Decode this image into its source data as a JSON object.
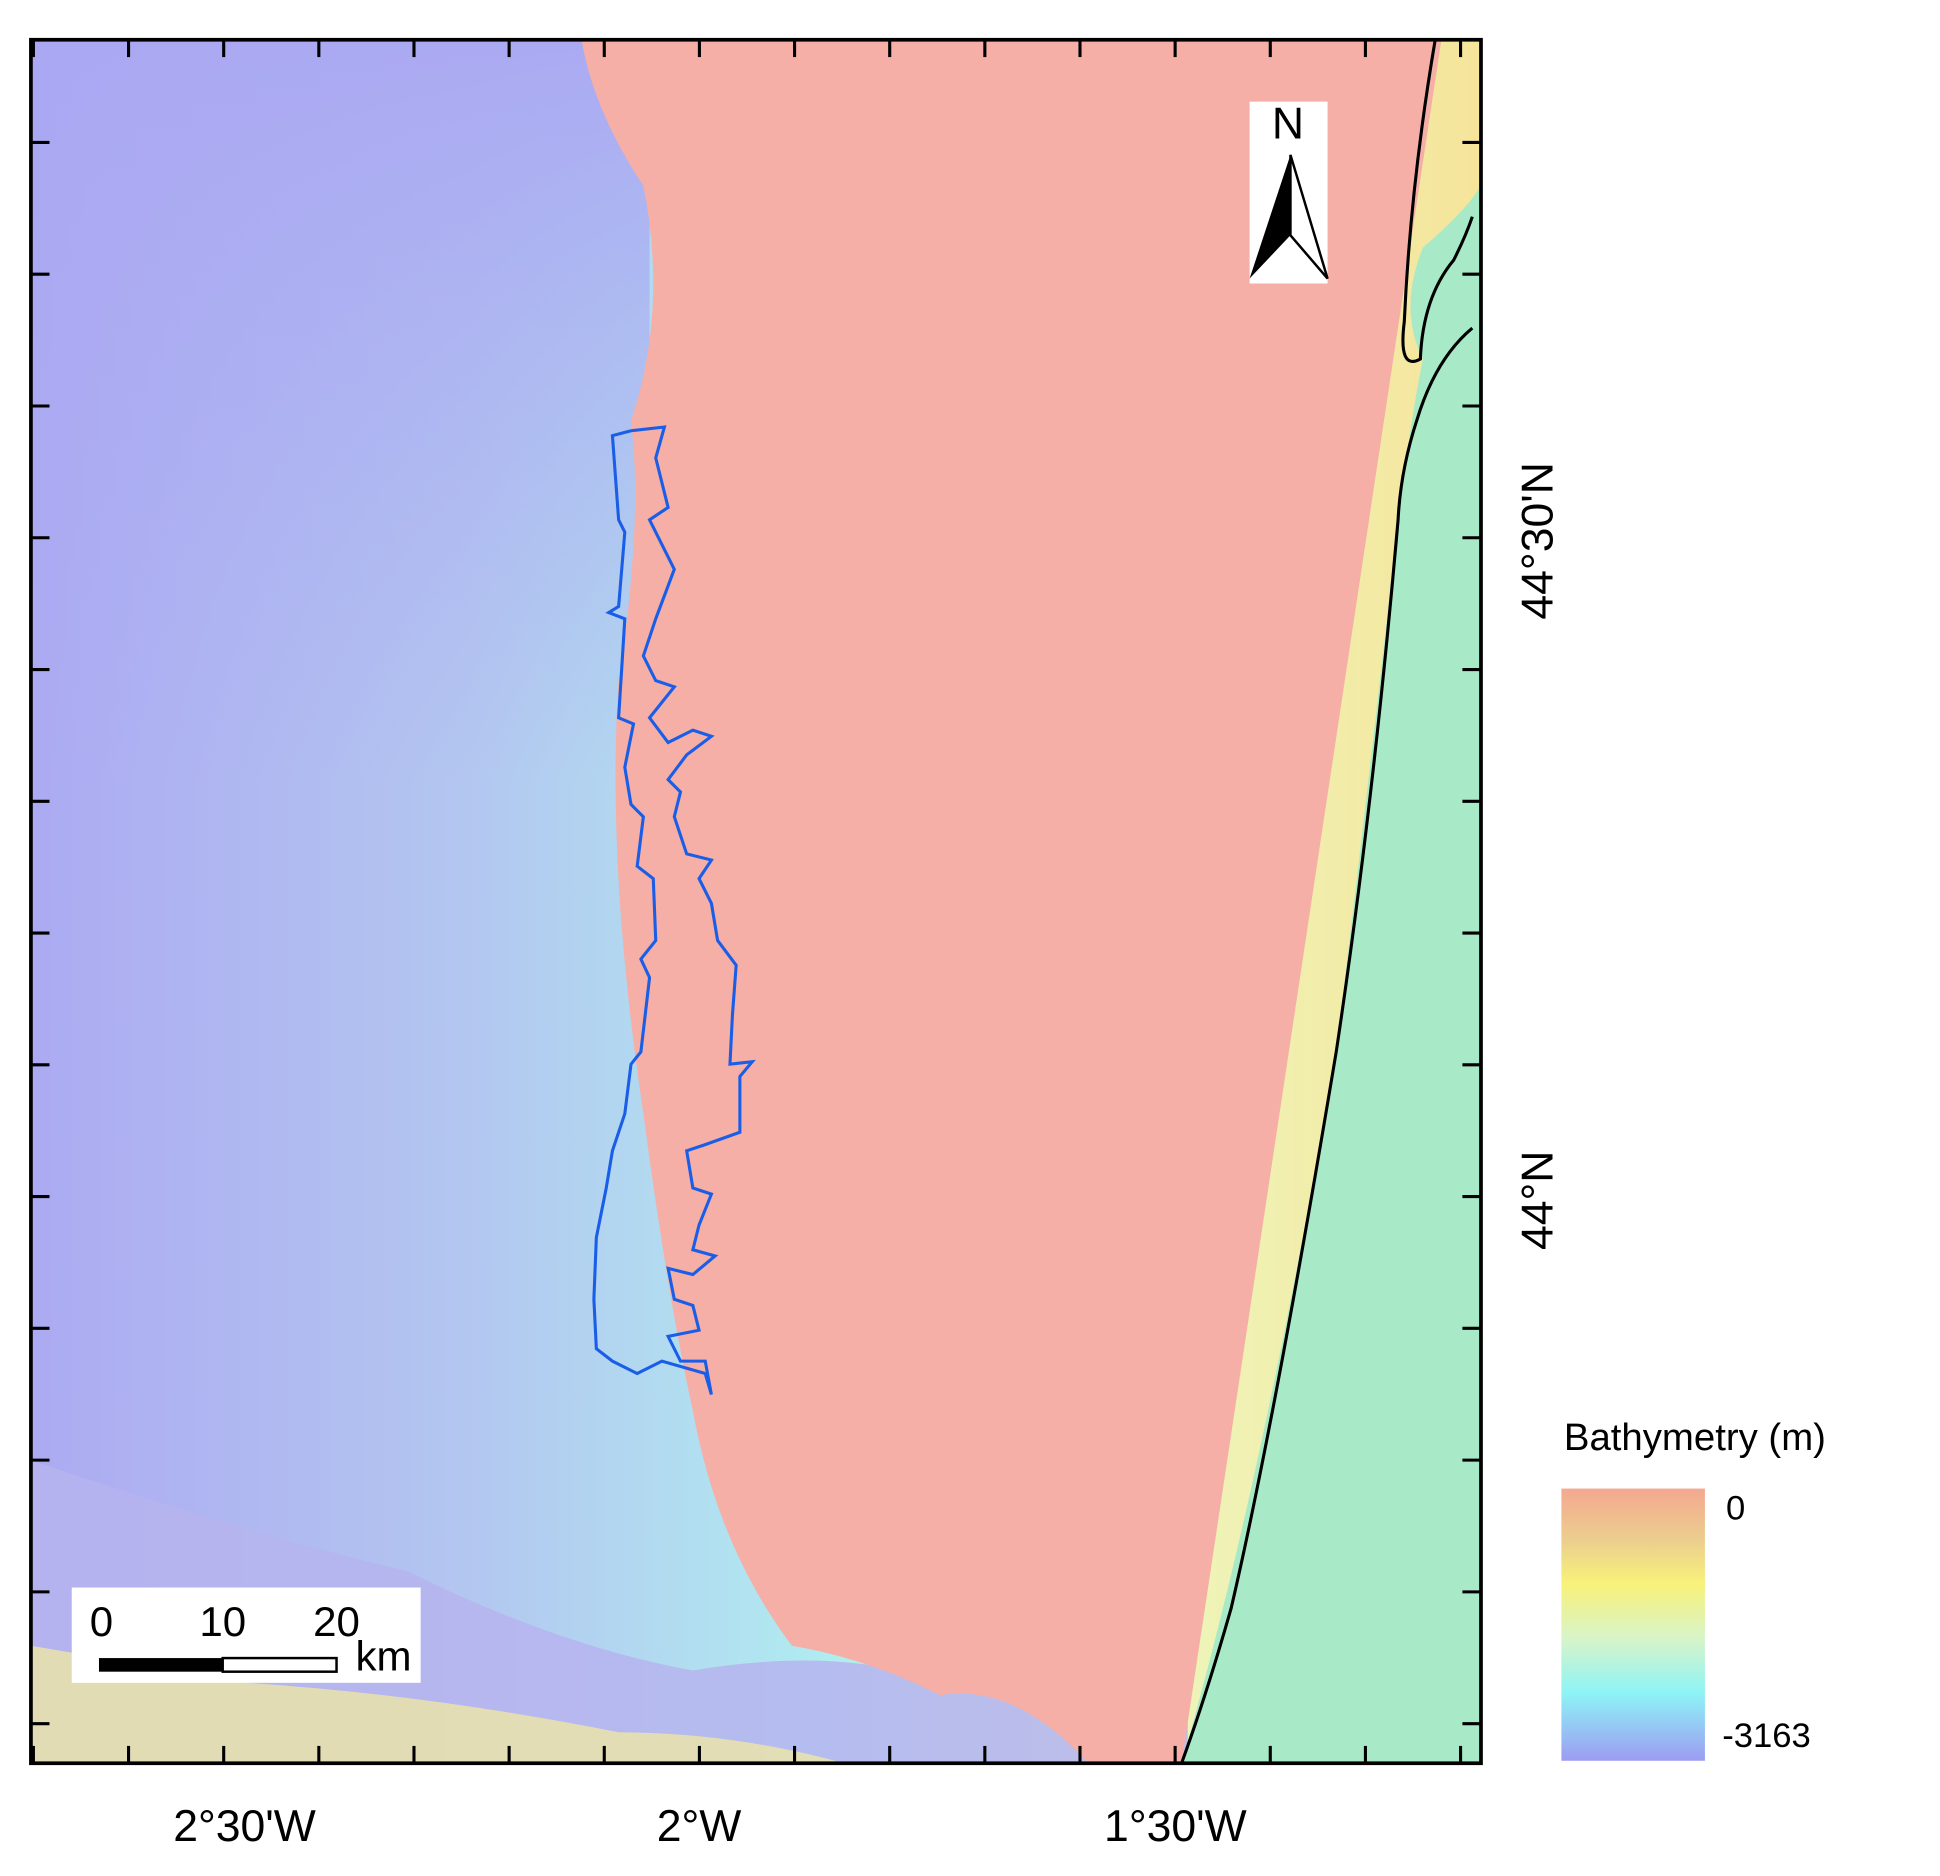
{
  "map": {
    "x_labels": [
      "2°30'W",
      "2°W",
      "1°30'W"
    ],
    "y_labels": [
      "44°30'N",
      "44°N"
    ],
    "north_arrow": "N",
    "legend": {
      "title": "Bathymetry (m)",
      "max": 0,
      "min": -3163
    },
    "scale_bar": {
      "ticks": [
        0,
        10,
        20
      ],
      "unit": "km"
    }
  }
}
